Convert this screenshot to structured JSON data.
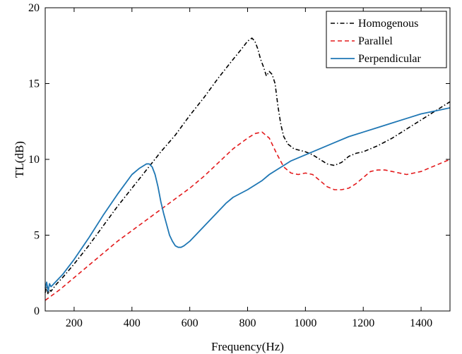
{
  "chart_data": {
    "type": "line",
    "title": "",
    "xlabel": "Frequency(Hz)",
    "ylabel": "TL(dB)",
    "xlim": [
      100,
      1500
    ],
    "ylim": [
      0,
      20
    ],
    "xticks": [
      200,
      400,
      600,
      800,
      1000,
      1200,
      1400
    ],
    "yticks": [
      0,
      5,
      10,
      15,
      20
    ],
    "grid": false,
    "legend_position": "top-right",
    "series": [
      {
        "name": "Homogenous",
        "color": "#000000",
        "dash": "dash-dot",
        "x": [
          100,
          105,
          110,
          115,
          120,
          140,
          160,
          200,
          250,
          300,
          350,
          400,
          450,
          500,
          550,
          600,
          650,
          700,
          750,
          780,
          800,
          815,
          825,
          835,
          845,
          855,
          865,
          875,
          885,
          895,
          905,
          915,
          925,
          940,
          960,
          980,
          1000,
          1025,
          1050,
          1075,
          1100,
          1125,
          1150,
          1175,
          1200,
          1250,
          1300,
          1350,
          1400,
          1450,
          1500
        ],
        "y": [
          1.2,
          1.6,
          1.1,
          1.4,
          1.3,
          1.8,
          2.2,
          3.1,
          4.3,
          5.6,
          6.9,
          8.1,
          9.3,
          10.5,
          11.6,
          12.9,
          14.1,
          15.4,
          16.6,
          17.3,
          17.8,
          18.0,
          17.8,
          17.3,
          16.6,
          16.1,
          15.5,
          15.8,
          15.6,
          15.0,
          13.5,
          12.3,
          11.5,
          11.0,
          10.7,
          10.6,
          10.5,
          10.3,
          10.0,
          9.7,
          9.6,
          9.8,
          10.2,
          10.4,
          10.5,
          10.9,
          11.4,
          12.0,
          12.6,
          13.2,
          13.8
        ]
      },
      {
        "name": "Parallel",
        "color": "#e31a1c",
        "dash": "dash",
        "x": [
          100,
          150,
          200,
          250,
          300,
          350,
          400,
          450,
          500,
          550,
          600,
          650,
          700,
          750,
          800,
          825,
          850,
          875,
          900,
          925,
          950,
          975,
          1000,
          1025,
          1050,
          1075,
          1100,
          1125,
          1150,
          1175,
          1200,
          1225,
          1250,
          1275,
          1300,
          1325,
          1350,
          1375,
          1400,
          1425,
          1450,
          1475,
          1500
        ],
        "y": [
          0.7,
          1.4,
          2.2,
          3.0,
          3.8,
          4.6,
          5.3,
          6.0,
          6.7,
          7.4,
          8.1,
          8.9,
          9.8,
          10.7,
          11.4,
          11.7,
          11.8,
          11.4,
          10.4,
          9.5,
          9.1,
          9.0,
          9.1,
          9.0,
          8.6,
          8.2,
          8.0,
          8.0,
          8.1,
          8.4,
          8.8,
          9.2,
          9.3,
          9.3,
          9.2,
          9.1,
          9.0,
          9.1,
          9.2,
          9.4,
          9.6,
          9.8,
          10.0
        ]
      },
      {
        "name": "Perpendicular",
        "color": "#1f77b4",
        "dash": "solid",
        "x": [
          100,
          105,
          110,
          115,
          120,
          140,
          160,
          200,
          250,
          300,
          350,
          400,
          425,
          450,
          460,
          470,
          480,
          490,
          500,
          510,
          520,
          530,
          540,
          550,
          560,
          570,
          580,
          600,
          625,
          650,
          675,
          700,
          725,
          750,
          800,
          850,
          875,
          900,
          925,
          950,
          1000,
          1050,
          1100,
          1150,
          1200,
          1250,
          1300,
          1350,
          1400,
          1450,
          1500
        ],
        "y": [
          1.5,
          1.9,
          1.3,
          1.8,
          1.6,
          2.0,
          2.4,
          3.4,
          4.8,
          6.3,
          7.7,
          9.0,
          9.4,
          9.7,
          9.7,
          9.5,
          9.0,
          8.2,
          7.2,
          6.4,
          5.7,
          5.0,
          4.6,
          4.3,
          4.2,
          4.2,
          4.3,
          4.6,
          5.1,
          5.6,
          6.1,
          6.6,
          7.1,
          7.5,
          8.0,
          8.6,
          9.0,
          9.3,
          9.6,
          9.9,
          10.3,
          10.7,
          11.1,
          11.5,
          11.8,
          12.1,
          12.4,
          12.7,
          13.0,
          13.2,
          13.4
        ]
      }
    ]
  }
}
